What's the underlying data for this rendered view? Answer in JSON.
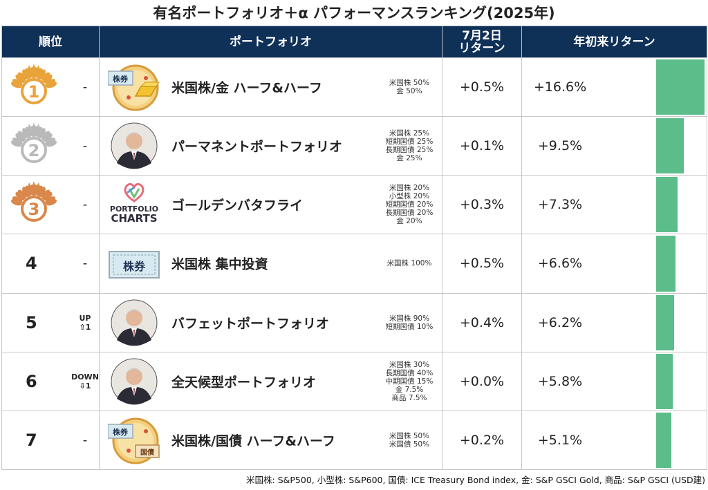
{
  "title": "有名ポートフォリオ＋α パフォーマンスランキング(2025年)",
  "colors": {
    "header_bg": "#0f3057",
    "bar": "#5cbd8a",
    "gold": "#e8a33a",
    "silver": "#b9b9b9",
    "bronze": "#d9874a"
  },
  "chart_data": {
    "type": "table",
    "headers": {
      "rank": "順位",
      "portfolio": "ポートフォリオ",
      "ret7_line1": "7月2日",
      "ret7_line2": "リターン",
      "ytd": "年初来リターン"
    },
    "rows": [
      {
        "rank": "1",
        "medal": "gold",
        "change": "-",
        "change_sub": "",
        "name": "米国株/金 ハーフ&ハーフ",
        "icon": "pizza-stock-gold-icon",
        "alloc": [
          "米国株 50%",
          "金 50%"
        ],
        "ret7": "+0.5%",
        "ytd": "+16.6%",
        "ytd_value": 16.6
      },
      {
        "rank": "2",
        "medal": "silver",
        "change": "-",
        "change_sub": "",
        "name": "パーマネントポートフォリオ",
        "icon": "person-portrait-icon",
        "alloc": [
          "米国株 25%",
          "短期国債 25%",
          "長期国債 25%",
          "金 25%"
        ],
        "ret7": "+0.1%",
        "ytd": "+9.5%",
        "ytd_value": 9.5
      },
      {
        "rank": "3",
        "medal": "bronze",
        "change": "-",
        "change_sub": "",
        "name": "ゴールデンバタフライ",
        "icon": "portfolio-charts-logo-icon",
        "logo_text": [
          "PORTFOLIO",
          "CHARTS"
        ],
        "alloc": [
          "米国株 20%",
          "小型株 20%",
          "短期国債 20%",
          "長期国債 20%",
          "金 20%"
        ],
        "ret7": "+0.3%",
        "ytd": "+7.3%",
        "ytd_value": 7.3
      },
      {
        "rank": "4",
        "medal": "",
        "change": "-",
        "change_sub": "",
        "name": "米国株 集中投資",
        "icon": "stock-certificate-icon",
        "alloc": [
          "米国株 100%"
        ],
        "ret7": "+0.5%",
        "ytd": "+6.6%",
        "ytd_value": 6.6
      },
      {
        "rank": "5",
        "medal": "",
        "change": "UP",
        "change_sub": "⇧1",
        "name": "バフェットポートフォリオ",
        "icon": "person-portrait-icon",
        "alloc": [
          "米国株 90%",
          "短期国債 10%"
        ],
        "ret7": "+0.4%",
        "ytd": "+6.2%",
        "ytd_value": 6.2
      },
      {
        "rank": "6",
        "medal": "",
        "change": "DOWN",
        "change_sub": "⇩1",
        "name": "全天候型ポートフォリオ",
        "icon": "person-portrait-icon",
        "alloc": [
          "米国株 30%",
          "長期国債 40%",
          "中期国債 15%",
          "金 7.5%",
          "商品 7.5%"
        ],
        "ret7": "+0.0%",
        "ytd": "+5.8%",
        "ytd_value": 5.8
      },
      {
        "rank": "7",
        "medal": "",
        "change": "-",
        "change_sub": "",
        "name": "米国株/国債 ハーフ&ハーフ",
        "icon": "pizza-stock-bond-icon",
        "alloc": [
          "米国株 50%",
          "米国債 50%"
        ],
        "ret7": "+0.2%",
        "ytd": "+5.1%",
        "ytd_value": 5.1
      }
    ],
    "pizza_labels": {
      "stock": "株券",
      "gold_bond": "国債"
    },
    "ytd_bar_max": 16.6
  },
  "footnote": "米国株: S&P500, 小型株: S&P600, 国債: ICE Treasury Bond index, 金: S&P GSCI Gold, 商品: S&P GSCI (USD建)"
}
